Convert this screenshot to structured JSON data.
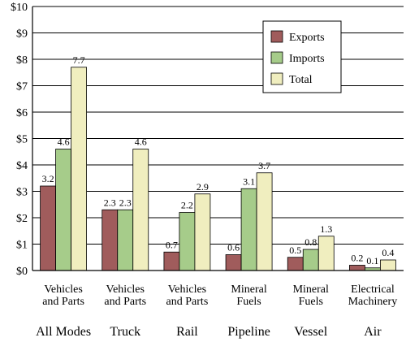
{
  "chart_data": {
    "type": "bar",
    "categories": [
      {
        "line1": "Vehicles",
        "line2": "and Parts",
        "group": "All Modes"
      },
      {
        "line1": "Vehicles",
        "line2": "and Parts",
        "group": "Truck"
      },
      {
        "line1": "Vehicles",
        "line2": "and Parts",
        "group": "Rail"
      },
      {
        "line1": "Mineral",
        "line2": "Fuels",
        "group": "Pipeline"
      },
      {
        "line1": "Mineral",
        "line2": "Fuels",
        "group": "Vessel"
      },
      {
        "line1": "Electrical",
        "line2": "Machinery",
        "group": "Air"
      }
    ],
    "series": [
      {
        "name": "Exports",
        "color": "#a05c5c",
        "values": [
          3.2,
          2.3,
          0.7,
          0.6,
          0.5,
          0.2
        ]
      },
      {
        "name": "Imports",
        "color": "#a6cc8a",
        "values": [
          4.6,
          2.3,
          2.2,
          3.1,
          0.8,
          0.1
        ]
      },
      {
        "name": "Total",
        "color": "#f0eebf",
        "values": [
          7.7,
          4.6,
          2.9,
          3.7,
          1.3,
          0.4
        ]
      }
    ],
    "data_labels": [
      [
        "3.2",
        "4.6",
        "7.7"
      ],
      [
        "2.3",
        "2.3",
        "4.6"
      ],
      [
        "0.7",
        "2.2",
        "2.9"
      ],
      [
        "0.6",
        "3.1",
        "3.7"
      ],
      [
        "0.5",
        "0.8",
        "1.3"
      ],
      [
        "0.2",
        "0.1",
        "0.4"
      ]
    ],
    "y_ticks": [
      "$0",
      "$1",
      "$2",
      "$3",
      "$4",
      "$5",
      "$6",
      "$7",
      "$8",
      "$9",
      "$10"
    ],
    "ylim": [
      0,
      10
    ],
    "grid": true,
    "legend_position": "top-right",
    "title": "",
    "xlabel": "",
    "ylabel": ""
  }
}
